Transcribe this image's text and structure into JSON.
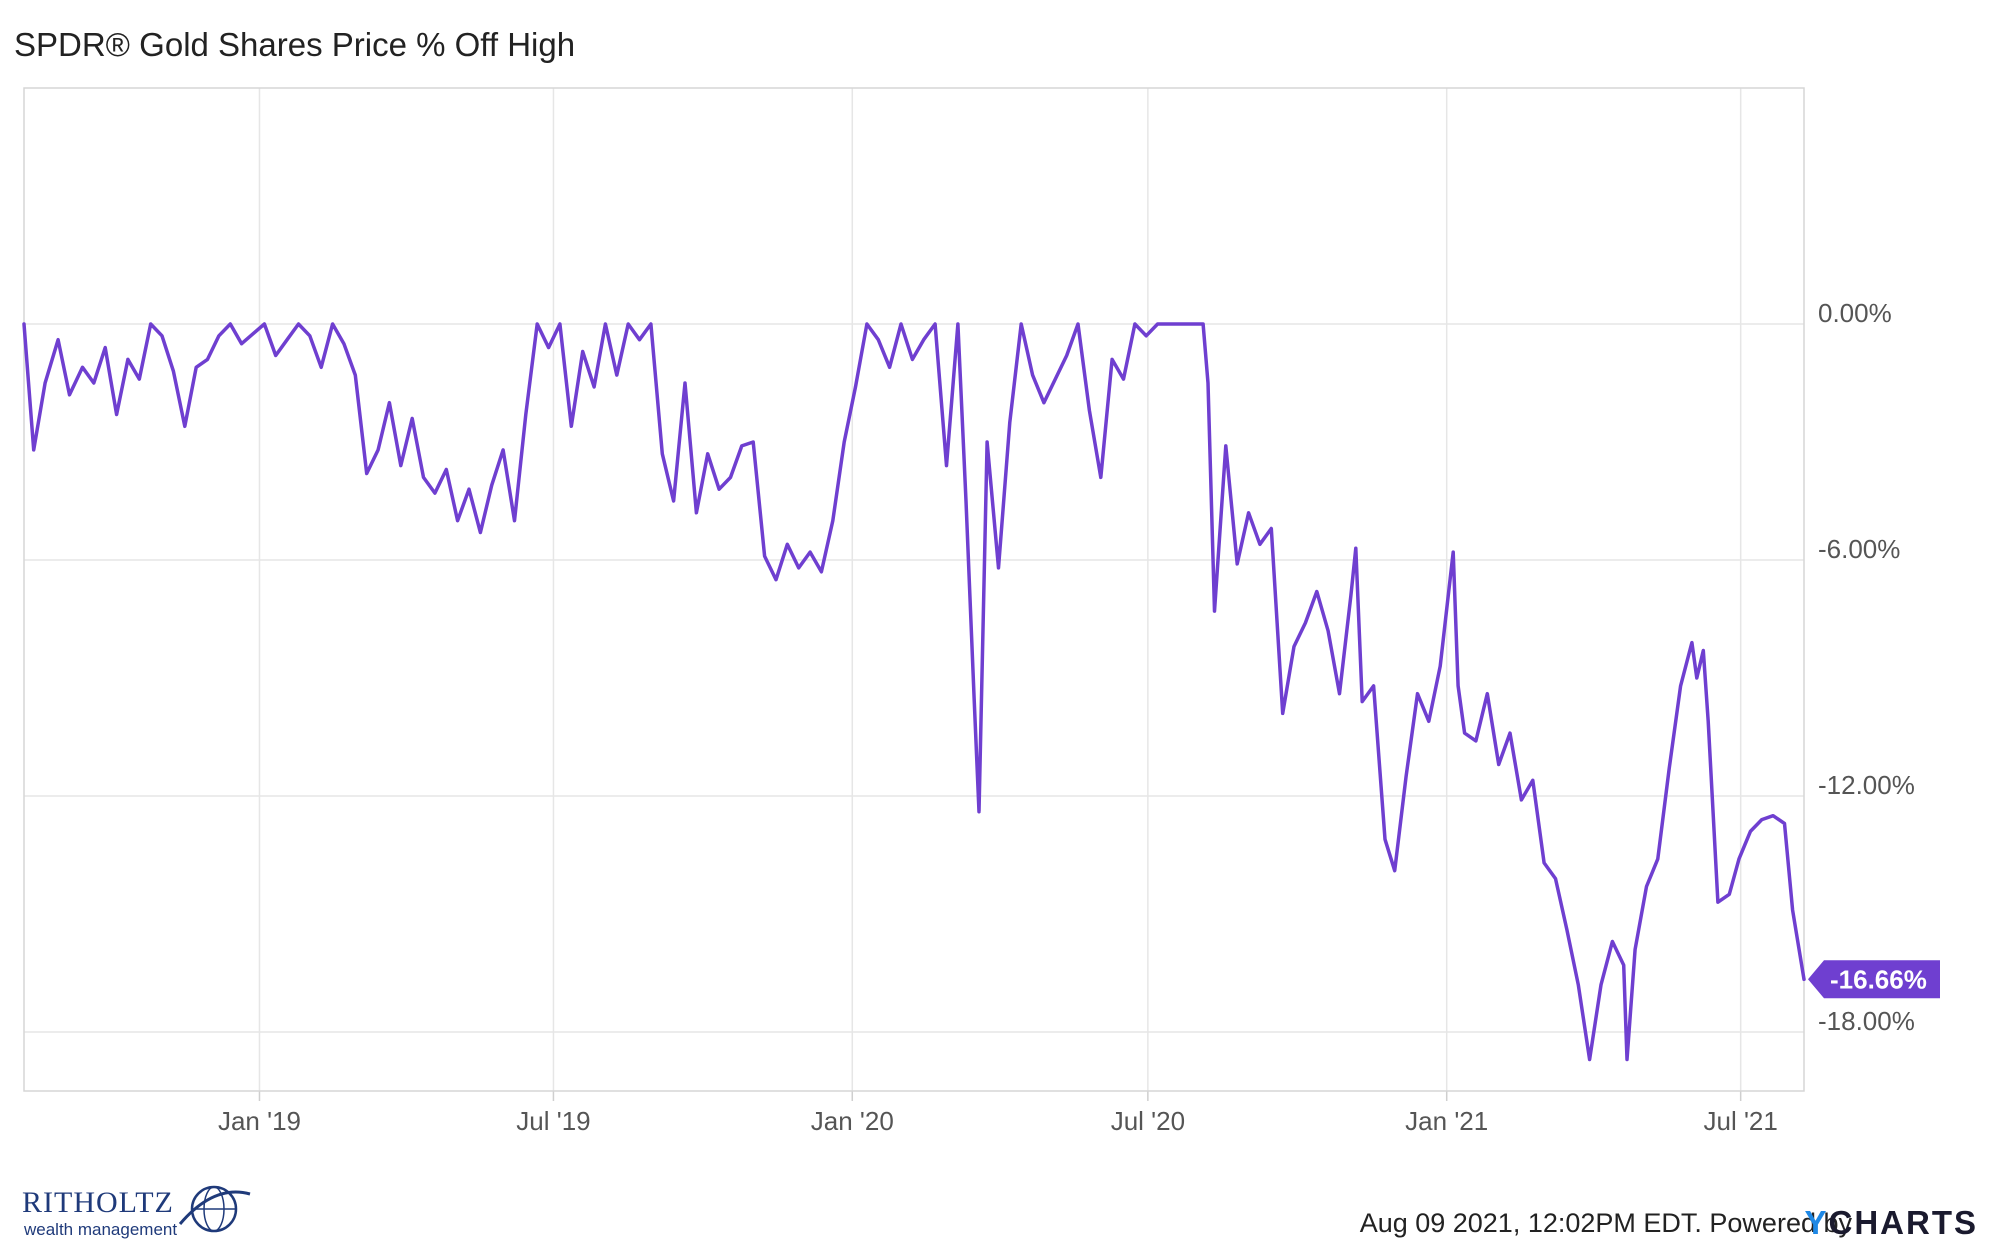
{
  "title": "SPDR® Gold Shares Price % Off High",
  "footer": {
    "timestamp": "Aug 09 2021, 12:02PM EDT.  Powered by",
    "brand_y": "Y",
    "brand_rest": "CHARTS"
  },
  "logo": {
    "name": "RITHOLTZ",
    "subtitle": "wealth management"
  },
  "colors": {
    "line": "#6f3fd0",
    "grid": "#e6e6e6",
    "badge": "#6f3fd0"
  },
  "chart_data": {
    "type": "line",
    "title": "SPDR® Gold Shares Price % Off High",
    "x_range": [
      "2018-08-09",
      "2021-08-09"
    ],
    "y_range": [
      -19.5,
      6
    ],
    "y_ticks": [
      {
        "value": 0,
        "label": "0.00%"
      },
      {
        "value": -6,
        "label": "-6.00%"
      },
      {
        "value": -12,
        "label": "-12.00%"
      },
      {
        "value": -18,
        "label": "-18.00%"
      }
    ],
    "x_ticks": [
      {
        "date": "2019-01-01",
        "label": "Jan '19"
      },
      {
        "date": "2019-07-01",
        "label": "Jul '19"
      },
      {
        "date": "2020-01-01",
        "label": "Jan '20"
      },
      {
        "date": "2020-07-01",
        "label": "Jul '20"
      },
      {
        "date": "2021-01-01",
        "label": "Jan '21"
      },
      {
        "date": "2021-07-01",
        "label": "Jul '21"
      }
    ],
    "last_value_label": "-16.66%",
    "series": [
      {
        "points": [
          [
            "2018-08-09",
            0.0
          ],
          [
            "2018-08-15",
            -3.2
          ],
          [
            "2018-08-22",
            -1.5
          ],
          [
            "2018-08-30",
            -0.4
          ],
          [
            "2018-09-06",
            -1.8
          ],
          [
            "2018-09-14",
            -1.1
          ],
          [
            "2018-09-21",
            -1.5
          ],
          [
            "2018-09-28",
            -0.6
          ],
          [
            "2018-10-05",
            -2.3
          ],
          [
            "2018-10-12",
            -0.9
          ],
          [
            "2018-10-19",
            -1.4
          ],
          [
            "2018-10-26",
            0.0
          ],
          [
            "2018-11-02",
            -0.3
          ],
          [
            "2018-11-09",
            -1.2
          ],
          [
            "2018-11-16",
            -2.6
          ],
          [
            "2018-11-23",
            -1.1
          ],
          [
            "2018-11-30",
            -0.9
          ],
          [
            "2018-12-07",
            -0.3
          ],
          [
            "2018-12-14",
            0.0
          ],
          [
            "2018-12-21",
            -0.5
          ],
          [
            "2019-01-04",
            0.0
          ],
          [
            "2019-01-11",
            -0.8
          ],
          [
            "2019-01-18",
            -0.4
          ],
          [
            "2019-01-25",
            0.0
          ],
          [
            "2019-02-01",
            -0.3
          ],
          [
            "2019-02-08",
            -1.1
          ],
          [
            "2019-02-15",
            0.0
          ],
          [
            "2019-02-22",
            -0.5
          ],
          [
            "2019-03-01",
            -1.3
          ],
          [
            "2019-03-08",
            -3.8
          ],
          [
            "2019-03-15",
            -3.2
          ],
          [
            "2019-03-22",
            -2.0
          ],
          [
            "2019-03-29",
            -3.6
          ],
          [
            "2019-04-05",
            -2.4
          ],
          [
            "2019-04-12",
            -3.9
          ],
          [
            "2019-04-19",
            -4.3
          ],
          [
            "2019-04-26",
            -3.7
          ],
          [
            "2019-05-03",
            -5.0
          ],
          [
            "2019-05-10",
            -4.2
          ],
          [
            "2019-05-17",
            -5.3
          ],
          [
            "2019-05-24",
            -4.1
          ],
          [
            "2019-05-31",
            -3.2
          ],
          [
            "2019-06-07",
            -5.0
          ],
          [
            "2019-06-14",
            -2.3
          ],
          [
            "2019-06-21",
            0.0
          ],
          [
            "2019-06-28",
            -0.6
          ],
          [
            "2019-07-05",
            0.0
          ],
          [
            "2019-07-12",
            -2.6
          ],
          [
            "2019-07-19",
            -0.7
          ],
          [
            "2019-07-26",
            -1.6
          ],
          [
            "2019-08-02",
            0.0
          ],
          [
            "2019-08-09",
            -1.3
          ],
          [
            "2019-08-16",
            0.0
          ],
          [
            "2019-08-23",
            -0.4
          ],
          [
            "2019-08-30",
            0.0
          ],
          [
            "2019-09-06",
            -3.3
          ],
          [
            "2019-09-13",
            -4.5
          ],
          [
            "2019-09-20",
            -1.5
          ],
          [
            "2019-09-27",
            -4.8
          ],
          [
            "2019-10-04",
            -3.3
          ],
          [
            "2019-10-11",
            -4.2
          ],
          [
            "2019-10-18",
            -3.9
          ],
          [
            "2019-10-25",
            -3.1
          ],
          [
            "2019-11-01",
            -3.0
          ],
          [
            "2019-11-08",
            -5.9
          ],
          [
            "2019-11-15",
            -6.5
          ],
          [
            "2019-11-22",
            -5.6
          ],
          [
            "2019-11-29",
            -6.2
          ],
          [
            "2019-12-06",
            -5.8
          ],
          [
            "2019-12-13",
            -6.3
          ],
          [
            "2019-12-20",
            -5.0
          ],
          [
            "2019-12-27",
            -3.0
          ],
          [
            "2020-01-03",
            -1.6
          ],
          [
            "2020-01-10",
            0.0
          ],
          [
            "2020-01-17",
            -0.4
          ],
          [
            "2020-01-24",
            -1.1
          ],
          [
            "2020-01-31",
            0.0
          ],
          [
            "2020-02-07",
            -0.9
          ],
          [
            "2020-02-14",
            -0.4
          ],
          [
            "2020-02-21",
            0.0
          ],
          [
            "2020-02-28",
            -3.6
          ],
          [
            "2020-03-06",
            0.0
          ],
          [
            "2020-03-11",
            -4.5
          ],
          [
            "2020-03-16",
            -9.5
          ],
          [
            "2020-03-19",
            -12.4
          ],
          [
            "2020-03-24",
            -3.0
          ],
          [
            "2020-03-31",
            -6.2
          ],
          [
            "2020-04-07",
            -2.5
          ],
          [
            "2020-04-14",
            0.0
          ],
          [
            "2020-04-21",
            -1.3
          ],
          [
            "2020-04-28",
            -2.0
          ],
          [
            "2020-05-05",
            -1.4
          ],
          [
            "2020-05-12",
            -0.8
          ],
          [
            "2020-05-19",
            0.0
          ],
          [
            "2020-05-26",
            -2.2
          ],
          [
            "2020-06-02",
            -3.9
          ],
          [
            "2020-06-09",
            -0.9
          ],
          [
            "2020-06-16",
            -1.4
          ],
          [
            "2020-06-23",
            0.0
          ],
          [
            "2020-06-30",
            -0.3
          ],
          [
            "2020-07-07",
            0.0
          ],
          [
            "2020-07-14",
            0.0
          ],
          [
            "2020-07-21",
            0.0
          ],
          [
            "2020-07-28",
            0.0
          ],
          [
            "2020-08-04",
            0.0
          ],
          [
            "2020-08-07",
            -1.5
          ],
          [
            "2020-08-11",
            -7.3
          ],
          [
            "2020-08-18",
            -3.1
          ],
          [
            "2020-08-25",
            -6.1
          ],
          [
            "2020-09-01",
            -4.8
          ],
          [
            "2020-09-08",
            -5.6
          ],
          [
            "2020-09-15",
            -5.2
          ],
          [
            "2020-09-22",
            -9.9
          ],
          [
            "2020-09-29",
            -8.2
          ],
          [
            "2020-10-06",
            -7.6
          ],
          [
            "2020-10-13",
            -6.8
          ],
          [
            "2020-10-20",
            -7.8
          ],
          [
            "2020-10-27",
            -9.4
          ],
          [
            "2020-11-03",
            -6.9
          ],
          [
            "2020-11-06",
            -5.7
          ],
          [
            "2020-11-10",
            -9.6
          ],
          [
            "2020-11-17",
            -9.2
          ],
          [
            "2020-11-24",
            -13.1
          ],
          [
            "2020-11-30",
            -13.9
          ],
          [
            "2020-12-07",
            -11.5
          ],
          [
            "2020-12-14",
            -9.4
          ],
          [
            "2020-12-21",
            -10.1
          ],
          [
            "2020-12-28",
            -8.7
          ],
          [
            "2021-01-05",
            -5.8
          ],
          [
            "2021-01-08",
            -9.2
          ],
          [
            "2021-01-12",
            -10.4
          ],
          [
            "2021-01-19",
            -10.6
          ],
          [
            "2021-01-26",
            -9.4
          ],
          [
            "2021-02-02",
            -11.2
          ],
          [
            "2021-02-09",
            -10.4
          ],
          [
            "2021-02-16",
            -12.1
          ],
          [
            "2021-02-23",
            -11.6
          ],
          [
            "2021-03-02",
            -13.7
          ],
          [
            "2021-03-09",
            -14.1
          ],
          [
            "2021-03-16",
            -15.4
          ],
          [
            "2021-03-23",
            -16.8
          ],
          [
            "2021-03-30",
            -18.7
          ],
          [
            "2021-04-06",
            -16.8
          ],
          [
            "2021-04-13",
            -15.7
          ],
          [
            "2021-04-20",
            -16.3
          ],
          [
            "2021-04-22",
            -18.7
          ],
          [
            "2021-04-27",
            -15.9
          ],
          [
            "2021-05-04",
            -14.3
          ],
          [
            "2021-05-11",
            -13.6
          ],
          [
            "2021-05-18",
            -11.3
          ],
          [
            "2021-05-25",
            -9.2
          ],
          [
            "2021-06-01",
            -8.1
          ],
          [
            "2021-06-04",
            -9.0
          ],
          [
            "2021-06-08",
            -8.3
          ],
          [
            "2021-06-11",
            -10.1
          ],
          [
            "2021-06-17",
            -14.7
          ],
          [
            "2021-06-24",
            -14.5
          ],
          [
            "2021-06-30",
            -13.6
          ],
          [
            "2021-07-07",
            -12.9
          ],
          [
            "2021-07-14",
            -12.6
          ],
          [
            "2021-07-21",
            -12.5
          ],
          [
            "2021-07-28",
            -12.7
          ],
          [
            "2021-08-02",
            -14.9
          ],
          [
            "2021-08-09",
            -16.66
          ]
        ]
      }
    ]
  }
}
